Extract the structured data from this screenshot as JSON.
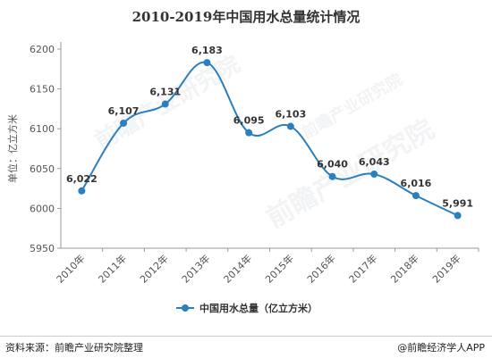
{
  "title": "2010-2019年中国用水总量统计情况",
  "source": "资料来源：前瞻产业研究院整理",
  "brand": "@前瞻经济学人APP",
  "watermark": "前瞻产业研究院",
  "colors": {
    "line": "#2a7fbf",
    "marker": "#2a7fbf",
    "axis": "#999999",
    "text": "#333333"
  },
  "chart_data": {
    "type": "line",
    "title": "2010-2019年中国用水总量统计情况",
    "ylabel": "单位：亿立方米",
    "xlabel": "",
    "categories": [
      "2010年",
      "2011年",
      "2012年",
      "2013年",
      "2014年",
      "2015年",
      "2016年",
      "2017年",
      "2018年",
      "2019年"
    ],
    "series": [
      {
        "name": "中国用水总量（亿立方米）",
        "values": [
          6022,
          6107,
          6131,
          6183,
          6095,
          6103,
          6040,
          6043,
          6016,
          5991
        ]
      }
    ],
    "data_labels": [
      "6,022",
      "6,107",
      "6,131",
      "6,183",
      "6,095",
      "6,103",
      "6,040",
      "6,043",
      "6,016",
      "5,991"
    ],
    "ylim": [
      5950,
      6200
    ],
    "yticks": [
      5950,
      6000,
      6050,
      6100,
      6150,
      6200
    ],
    "grid": false,
    "legend": "bottom"
  }
}
